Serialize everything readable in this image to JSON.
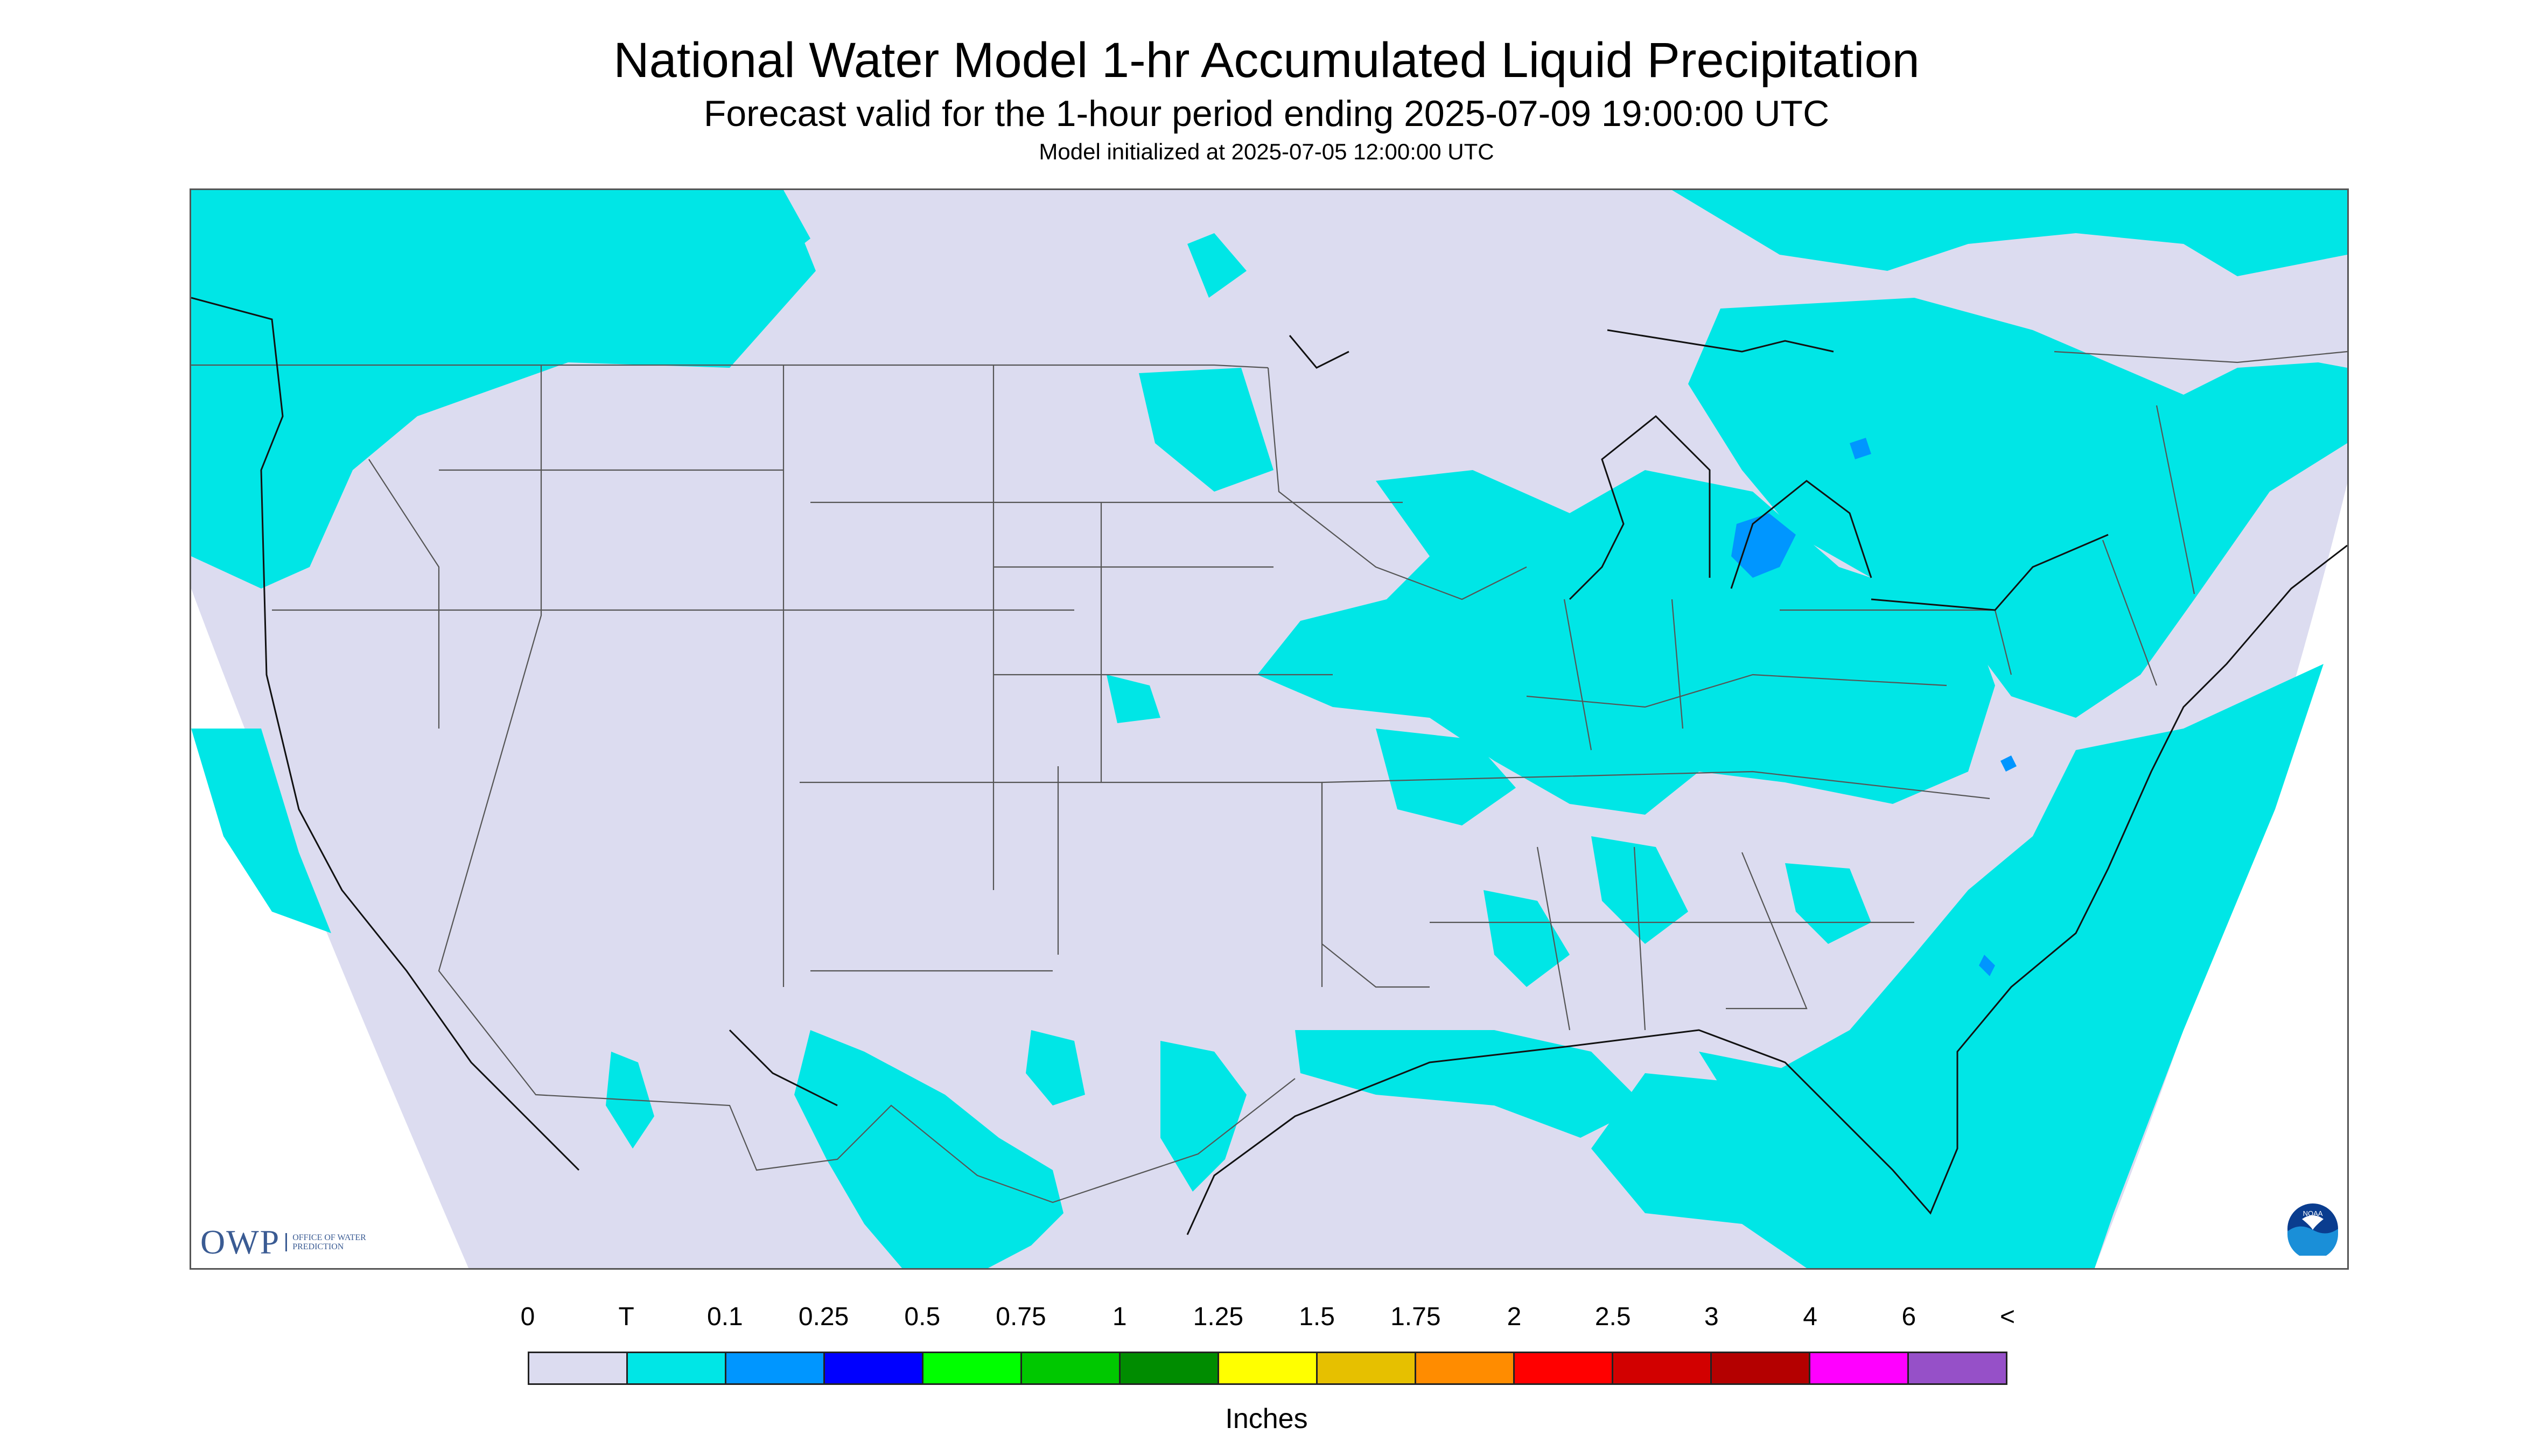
{
  "title": "National Water Model 1-hr Accumulated Liquid Precipitation",
  "subtitle": "Forecast valid for the 1-hour period ending 2025-07-09 19:00:00 UTC",
  "init_line": "Model initialized at 2025-07-05 12:00:00 UTC",
  "logos": {
    "owp_mark": "OWP",
    "owp_text": "OFFICE OF WATER PREDICTION",
    "noaa_text": "NOAA"
  },
  "legend": {
    "labels": [
      "0",
      "T",
      "0.1",
      "0.25",
      "0.5",
      "0.75",
      "1",
      "1.25",
      "1.5",
      "1.75",
      "2",
      "2.5",
      "3",
      "4",
      "6",
      "<"
    ],
    "colors": [
      "#dcdcf0",
      "#00e6e6",
      "#0096ff",
      "#0000ff",
      "#00ff00",
      "#00c800",
      "#008c00",
      "#ffff00",
      "#e6c000",
      "#ff8c00",
      "#ff0000",
      "#d20000",
      "#b40000",
      "#ff00ff",
      "#9650c8"
    ],
    "units": "Inches"
  },
  "map": {
    "background_color": "#dcdcf0",
    "precip_color": "#00e6e6",
    "heavy_color": "#0096ff",
    "border_color": "#555555"
  }
}
